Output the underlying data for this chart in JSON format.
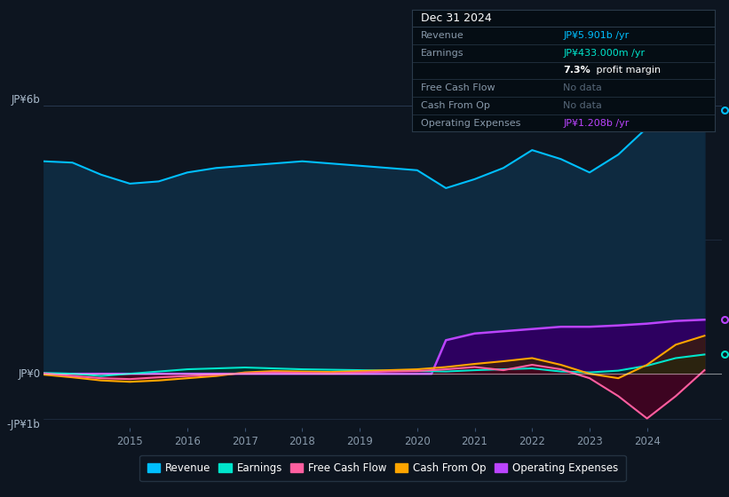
{
  "background_color": "#0d1520",
  "plot_bg_color": "#0d1520",
  "ylim": [
    -1200000000.0,
    6800000000.0
  ],
  "xlim_start": 2013.5,
  "xlim_end": 2025.3,
  "xtick_years": [
    2015,
    2016,
    2017,
    2018,
    2019,
    2020,
    2021,
    2022,
    2023,
    2024
  ],
  "ylabel_top": "JP¥6b",
  "ylabel_zero": "JP¥0",
  "ylabel_neg": "-JP¥1b",
  "y_top": 6000000000.0,
  "y_zero": 0,
  "y_neg": -1000000000.0,
  "legend_items": [
    {
      "label": "Revenue",
      "color": "#00bfff"
    },
    {
      "label": "Earnings",
      "color": "#00e5cc"
    },
    {
      "label": "Free Cash Flow",
      "color": "#ff5fa0"
    },
    {
      "label": "Cash From Op",
      "color": "#ffa500"
    },
    {
      "label": "Operating Expenses",
      "color": "#bb44ff"
    }
  ],
  "info_box": {
    "title": "Dec 31 2024",
    "title_color": "#ffffff",
    "bg_color": "#050d14",
    "border_color": "#2a3a4a",
    "rows": [
      {
        "label": "Revenue",
        "value": "JP¥5.901b /yr",
        "value_color": "#00bfff",
        "label_color": "#8899aa"
      },
      {
        "label": "Earnings",
        "value": "JP¥433.000m /yr",
        "value_color": "#00e5cc",
        "label_color": "#8899aa"
      },
      {
        "label": "",
        "value": "7.3%",
        "value_color": "#ffffff",
        "label_color": "#8899aa",
        "suffix": " profit margin",
        "suffix_color": "#ffffff"
      },
      {
        "label": "Free Cash Flow",
        "value": "No data",
        "value_color": "#556677",
        "label_color": "#8899aa"
      },
      {
        "label": "Cash From Op",
        "value": "No data",
        "value_color": "#556677",
        "label_color": "#8899aa"
      },
      {
        "label": "Operating Expenses",
        "value": "JP¥1.208b /yr",
        "value_color": "#bb44ff",
        "label_color": "#8899aa"
      }
    ]
  },
  "revenue_x": [
    2013.5,
    2014.0,
    2014.5,
    2015.0,
    2015.5,
    2016.0,
    2016.5,
    2017.0,
    2017.5,
    2018.0,
    2018.5,
    2019.0,
    2019.5,
    2020.0,
    2020.5,
    2021.0,
    2021.5,
    2022.0,
    2022.5,
    2023.0,
    2023.5,
    2024.0,
    2024.5,
    2025.0
  ],
  "revenue_y": [
    4750000000.0,
    4720000000.0,
    4450000000.0,
    4250000000.0,
    4300000000.0,
    4500000000.0,
    4600000000.0,
    4650000000.0,
    4700000000.0,
    4750000000.0,
    4700000000.0,
    4650000000.0,
    4600000000.0,
    4550000000.0,
    4150000000.0,
    4350000000.0,
    4600000000.0,
    5000000000.0,
    4800000000.0,
    4500000000.0,
    4900000000.0,
    5500000000.0,
    5800000000.0,
    5900000000.0
  ],
  "revenue_color": "#00bfff",
  "revenue_fill": "#0e2a40",
  "earnings_x": [
    2013.5,
    2014.0,
    2014.5,
    2015.0,
    2015.5,
    2016.0,
    2016.5,
    2017.0,
    2017.5,
    2018.0,
    2018.5,
    2019.0,
    2019.5,
    2020.0,
    2020.5,
    2021.0,
    2021.5,
    2022.0,
    2022.5,
    2023.0,
    2023.5,
    2024.0,
    2024.5,
    2025.0
  ],
  "earnings_y": [
    20000000.0,
    0.0,
    -50000000.0,
    0.0,
    50000000.0,
    100000000.0,
    120000000.0,
    140000000.0,
    120000000.0,
    100000000.0,
    90000000.0,
    80000000.0,
    70000000.0,
    60000000.0,
    50000000.0,
    80000000.0,
    100000000.0,
    120000000.0,
    50000000.0,
    30000000.0,
    70000000.0,
    180000000.0,
    350000000.0,
    430000000.0
  ],
  "earnings_color": "#00e5cc",
  "earnings_fill": "#003328",
  "fcf_x": [
    2013.5,
    2014.0,
    2014.5,
    2015.0,
    2015.5,
    2016.0,
    2016.5,
    2017.0,
    2017.5,
    2018.0,
    2018.5,
    2019.0,
    2019.5,
    2020.0,
    2020.5,
    2021.0,
    2021.5,
    2022.0,
    2022.5,
    2023.0,
    2023.5,
    2024.0,
    2024.5,
    2025.0
  ],
  "fcf_y": [
    10000000.0,
    -50000000.0,
    -100000000.0,
    -120000000.0,
    -80000000.0,
    -50000000.0,
    -20000000.0,
    10000000.0,
    30000000.0,
    20000000.0,
    10000000.0,
    30000000.0,
    50000000.0,
    60000000.0,
    100000000.0,
    150000000.0,
    80000000.0,
    200000000.0,
    100000000.0,
    -100000000.0,
    -500000000.0,
    -1000000000.0,
    -500000000.0,
    80000000.0
  ],
  "fcf_color": "#ff5fa0",
  "fcf_fill": "#4a0022",
  "cop_x": [
    2013.5,
    2014.0,
    2014.5,
    2015.0,
    2015.5,
    2016.0,
    2016.5,
    2017.0,
    2017.5,
    2018.0,
    2018.5,
    2019.0,
    2019.5,
    2020.0,
    2020.5,
    2021.0,
    2021.5,
    2022.0,
    2022.5,
    2023.0,
    2023.5,
    2024.0,
    2024.5,
    2025.0
  ],
  "cop_y": [
    -20000000.0,
    -80000000.0,
    -150000000.0,
    -180000000.0,
    -150000000.0,
    -100000000.0,
    -50000000.0,
    30000000.0,
    60000000.0,
    50000000.0,
    40000000.0,
    60000000.0,
    80000000.0,
    100000000.0,
    150000000.0,
    220000000.0,
    280000000.0,
    350000000.0,
    200000000.0,
    0.0,
    -100000000.0,
    200000000.0,
    650000000.0,
    850000000.0
  ],
  "cop_color": "#ffa500",
  "cop_fill": "#3a2200",
  "opex_x": [
    2013.5,
    2014.0,
    2014.5,
    2015.0,
    2015.5,
    2016.0,
    2016.5,
    2017.0,
    2017.5,
    2018.0,
    2018.5,
    2019.0,
    2019.5,
    2020.0,
    2020.25,
    2020.5,
    2021.0,
    2021.5,
    2022.0,
    2022.5,
    2023.0,
    2023.5,
    2024.0,
    2024.5,
    2025.0
  ],
  "opex_y": [
    0,
    0,
    0,
    0,
    0,
    0,
    0,
    0,
    0,
    0,
    0,
    0,
    0,
    0,
    0.0,
    750000000.0,
    900000000.0,
    950000000.0,
    1000000000.0,
    1050000000.0,
    1050000000.0,
    1080000000.0,
    1120000000.0,
    1180000000.0,
    1208000000.0
  ],
  "opex_color": "#bb44ff",
  "opex_fill": "#2d0060"
}
